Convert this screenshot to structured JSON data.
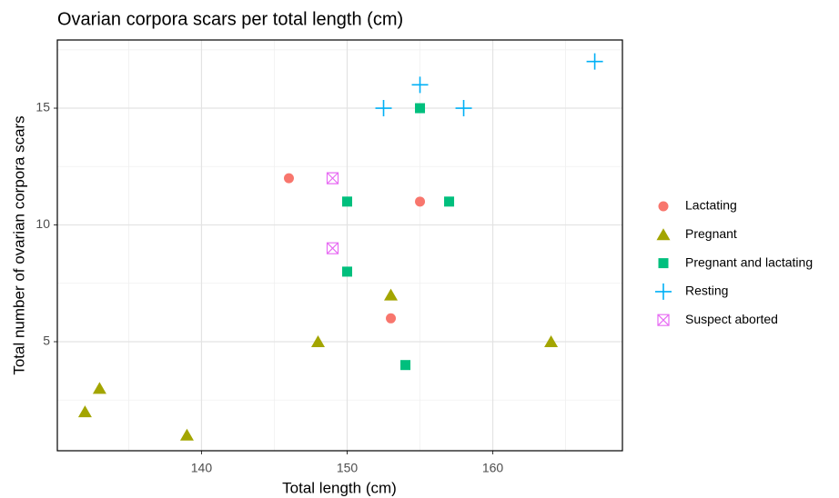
{
  "chart_data": {
    "type": "scatter",
    "title": "Ovarian corpora scars per total length (cm)",
    "x_label": "Total length (cm)",
    "y_label": "Total number of ovarian corpora scars",
    "xlim": [
      130.1,
      168.9
    ],
    "ylim": [
      0.33,
      17.92
    ],
    "xticks": [
      140,
      150,
      160
    ],
    "yticks": [
      5,
      10,
      15
    ],
    "x_minor": [
      135,
      145,
      155,
      165
    ],
    "y_minor": [
      2.5,
      7.5,
      12.5,
      17.5
    ],
    "grid": true,
    "legend": "right",
    "series": [
      {
        "name": "Lactating",
        "color": "#F8766D",
        "shape": "circle",
        "x": [
          146,
          155,
          153
        ],
        "values": [
          12,
          11,
          6
        ]
      },
      {
        "name": "Pregnant",
        "color": "#A3A500",
        "shape": "triangle",
        "x": [
          132,
          133,
          139,
          148,
          153,
          164
        ],
        "values": [
          2,
          3,
          1,
          5,
          7,
          5
        ]
      },
      {
        "name": "Pregnant and lactating",
        "color": "#00BF7D",
        "shape": "square",
        "x": [
          155,
          150,
          157,
          150,
          154
        ],
        "values": [
          15,
          11,
          11,
          8,
          4
        ]
      },
      {
        "name": "Resting",
        "color": "#00B0F6",
        "shape": "plus",
        "x": [
          152.5,
          155,
          158,
          167
        ],
        "values": [
          15,
          16,
          15,
          17
        ]
      },
      {
        "name": "Suspect aborted",
        "color": "#E76BF3",
        "shape": "square-cross",
        "x": [
          149,
          149
        ],
        "values": [
          12,
          9
        ]
      }
    ]
  }
}
